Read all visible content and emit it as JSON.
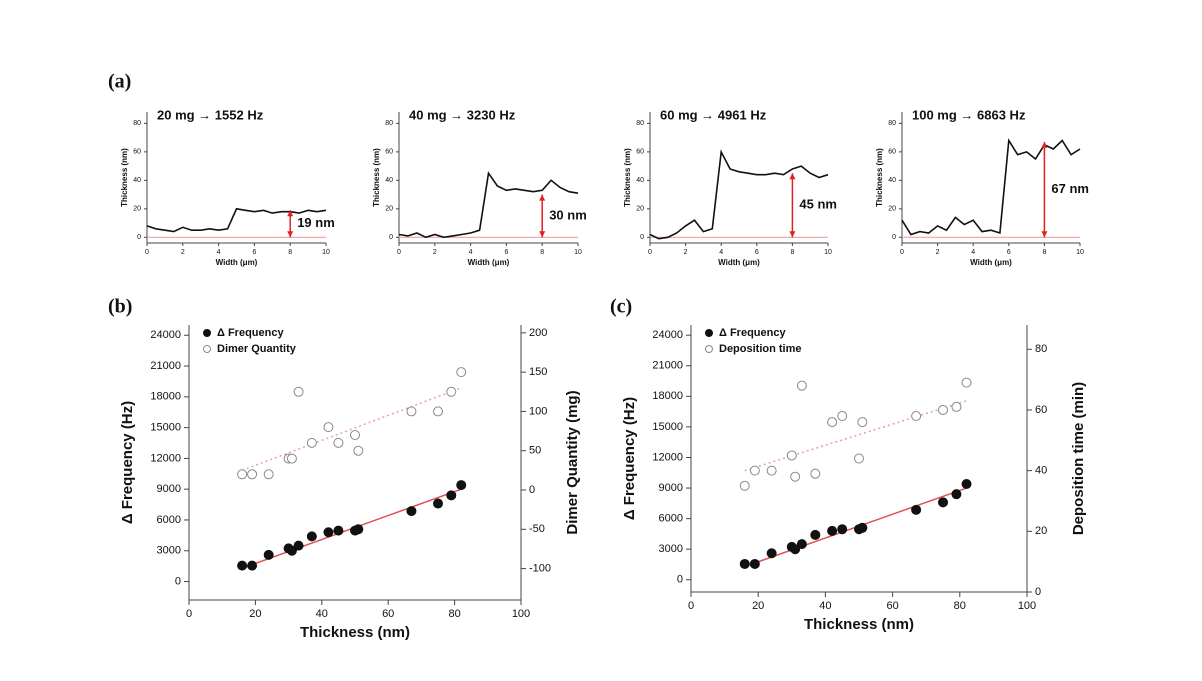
{
  "panels": [
    "(a)",
    "(b)",
    "(c)"
  ],
  "chart_data": [
    {
      "type": "line",
      "title": "20 mg → 1552 Hz",
      "x_label": "Width (μm)",
      "y_label": "Thickness (nm)",
      "x": [
        0,
        0.5,
        1,
        1.5,
        2,
        2.5,
        3,
        3.5,
        4,
        4.5,
        5,
        5.5,
        6,
        6.5,
        7,
        7.5,
        8,
        8.5,
        9,
        9.5,
        10
      ],
      "values": [
        8,
        6,
        5,
        4,
        7,
        5,
        5,
        6,
        5,
        6,
        20,
        19,
        18,
        19,
        17,
        18,
        18,
        17,
        19,
        18,
        19
      ],
      "color": "#111111",
      "xlim": [
        0,
        10
      ],
      "xticks": [
        0,
        2,
        4,
        6,
        8,
        10
      ],
      "ylim": [
        -4,
        88
      ],
      "yticks": [
        0,
        20,
        40,
        60,
        80
      ],
      "reference_line": 0,
      "reference_color": "#f2a0a0",
      "arrow": {
        "x": 8,
        "values": [
          0,
          19
        ],
        "color": "#e02020"
      },
      "annotation": "19 nm"
    },
    {
      "type": "line",
      "title": "40 mg → 3230 Hz",
      "x_label": "Width (μm)",
      "y_label": "Thickness (nm)",
      "x": [
        0,
        0.5,
        1,
        1.5,
        2,
        2.5,
        3,
        3.5,
        4,
        4.5,
        5,
        5.5,
        6,
        6.5,
        7,
        7.5,
        8,
        8.5,
        9,
        9.5,
        10
      ],
      "values": [
        2,
        1,
        3,
        0,
        2,
        0,
        1,
        2,
        3,
        5,
        45,
        36,
        33,
        34,
        33,
        32,
        33,
        40,
        35,
        32,
        31
      ],
      "color": "#111111",
      "xlim": [
        0,
        10
      ],
      "xticks": [
        0,
        2,
        4,
        6,
        8,
        10
      ],
      "ylim": [
        -4,
        88
      ],
      "yticks": [
        0,
        20,
        40,
        60,
        80
      ],
      "reference_line": 0,
      "reference_color": "#f2a0a0",
      "arrow": {
        "x": 8,
        "values": [
          0,
          30
        ],
        "color": "#e02020"
      },
      "annotation": "30 nm"
    },
    {
      "type": "line",
      "title": "60 mg → 4961 Hz",
      "x_label": "Width (μm)",
      "y_label": "Thickness (nm)",
      "x": [
        0,
        0.5,
        1,
        1.5,
        2,
        2.5,
        3,
        3.5,
        4,
        4.5,
        5,
        5.5,
        6,
        6.5,
        7,
        7.5,
        8,
        8.5,
        9,
        9.5,
        10
      ],
      "values": [
        2,
        -1,
        0,
        3,
        8,
        12,
        4,
        6,
        60,
        48,
        46,
        45,
        44,
        44,
        45,
        44,
        48,
        50,
        45,
        42,
        44
      ],
      "color": "#111111",
      "xlim": [
        0,
        10
      ],
      "xticks": [
        0,
        2,
        4,
        6,
        8,
        10
      ],
      "ylim": [
        -4,
        88
      ],
      "yticks": [
        0,
        20,
        40,
        60,
        80
      ],
      "reference_line": 0,
      "reference_color": "#f2a0a0",
      "arrow": {
        "x": 8,
        "values": [
          0,
          45
        ],
        "color": "#e02020"
      },
      "annotation": "45 nm"
    },
    {
      "type": "line",
      "title": "100 mg → 6863 Hz",
      "x_label": "Width (μm)",
      "y_label": "Thickness (nm)",
      "x": [
        0,
        0.5,
        1,
        1.5,
        2,
        2.5,
        3,
        3.5,
        4,
        4.5,
        5,
        5.5,
        6,
        6.5,
        7,
        7.5,
        8,
        8.5,
        9,
        9.5,
        10
      ],
      "values": [
        12,
        2,
        4,
        3,
        8,
        5,
        14,
        9,
        12,
        4,
        5,
        3,
        68,
        58,
        60,
        55,
        65,
        62,
        68,
        58,
        62
      ],
      "color": "#111111",
      "xlim": [
        0,
        10
      ],
      "xticks": [
        0,
        2,
        4,
        6,
        8,
        10
      ],
      "ylim": [
        -4,
        88
      ],
      "yticks": [
        0,
        20,
        40,
        60,
        80
      ],
      "reference_line": 0,
      "reference_color": "#f2a0a0",
      "arrow": {
        "x": 8,
        "values": [
          0,
          67
        ],
        "color": "#e02020"
      },
      "annotation": "67 nm"
    },
    {
      "type": "scatter",
      "x_label": "Thickness (nm)",
      "y_label": "Δ Frequency (Hz)",
      "y2_label": "Dimer Quantity (mg)",
      "x": [
        16,
        19,
        24,
        30,
        31,
        33,
        37,
        42,
        45,
        50,
        51,
        67,
        75,
        79,
        82
      ],
      "xlim": [
        0,
        100
      ],
      "xticks": [
        0,
        20,
        40,
        60,
        80,
        100
      ],
      "ylim": [
        -1800,
        25000
      ],
      "yticks": [
        0,
        3000,
        6000,
        9000,
        12000,
        15000,
        18000,
        21000,
        24000
      ],
      "y2lim": [
        -140,
        210
      ],
      "y2ticks": [
        -100,
        -50,
        0,
        50,
        100,
        150,
        200
      ],
      "legend": "top-left",
      "series": [
        {
          "name": "Δ Frequency",
          "marker": "filled",
          "color": "#111111",
          "values": [
            1552,
            1552,
            2600,
            3230,
            3000,
            3500,
            4400,
            4800,
            4961,
            4961,
            5100,
            6863,
            7600,
            8400,
            9400
          ],
          "fit": {
            "x": [
              16,
              82
            ],
            "values": [
              1300,
              9000
            ],
            "color": "#e05050",
            "style": "solid"
          }
        },
        {
          "name": "Dimer Quantity",
          "marker": "open",
          "color": "#888888",
          "axis": "y2",
          "values": [
            20,
            20,
            20,
            40,
            40,
            125,
            60,
            80,
            60,
            70,
            50,
            100,
            100,
            125,
            150
          ],
          "fit": {
            "x": [
              16,
              82
            ],
            "values": [
              25,
              130
            ],
            "color": "#e8a0a8",
            "style": "dotted"
          }
        }
      ]
    },
    {
      "type": "scatter",
      "x_label": "Thickness (nm)",
      "y_label": "Δ Frequency (Hz)",
      "y2_label": "Deposition time (min)",
      "x": [
        16,
        19,
        24,
        30,
        31,
        33,
        37,
        42,
        45,
        50,
        51,
        67,
        75,
        79,
        82
      ],
      "xlim": [
        0,
        100
      ],
      "xticks": [
        0,
        20,
        40,
        60,
        80,
        100
      ],
      "ylim": [
        -1200,
        25000
      ],
      "yticks": [
        0,
        3000,
        6000,
        9000,
        12000,
        15000,
        18000,
        21000,
        24000
      ],
      "y2lim": [
        0,
        88
      ],
      "y2ticks": [
        0,
        20,
        40,
        60,
        80
      ],
      "legend": "top-left",
      "series": [
        {
          "name": "Δ Frequency",
          "marker": "filled",
          "color": "#111111",
          "values": [
            1552,
            1552,
            2600,
            3230,
            3000,
            3500,
            4400,
            4800,
            4961,
            4961,
            5100,
            6863,
            7600,
            8400,
            9400
          ],
          "fit": {
            "x": [
              16,
              82
            ],
            "values": [
              1300,
              9000
            ],
            "color": "#e05050",
            "style": "solid"
          }
        },
        {
          "name": "Deposition time",
          "marker": "open",
          "color": "#888888",
          "axis": "y2",
          "values": [
            35,
            40,
            40,
            45,
            38,
            68,
            39,
            56,
            58,
            44,
            56,
            58,
            60,
            61,
            69
          ],
          "fit": {
            "x": [
              16,
              82
            ],
            "values": [
              40,
              63
            ],
            "color": "#e8a0a8",
            "style": "dotted"
          }
        }
      ]
    }
  ]
}
